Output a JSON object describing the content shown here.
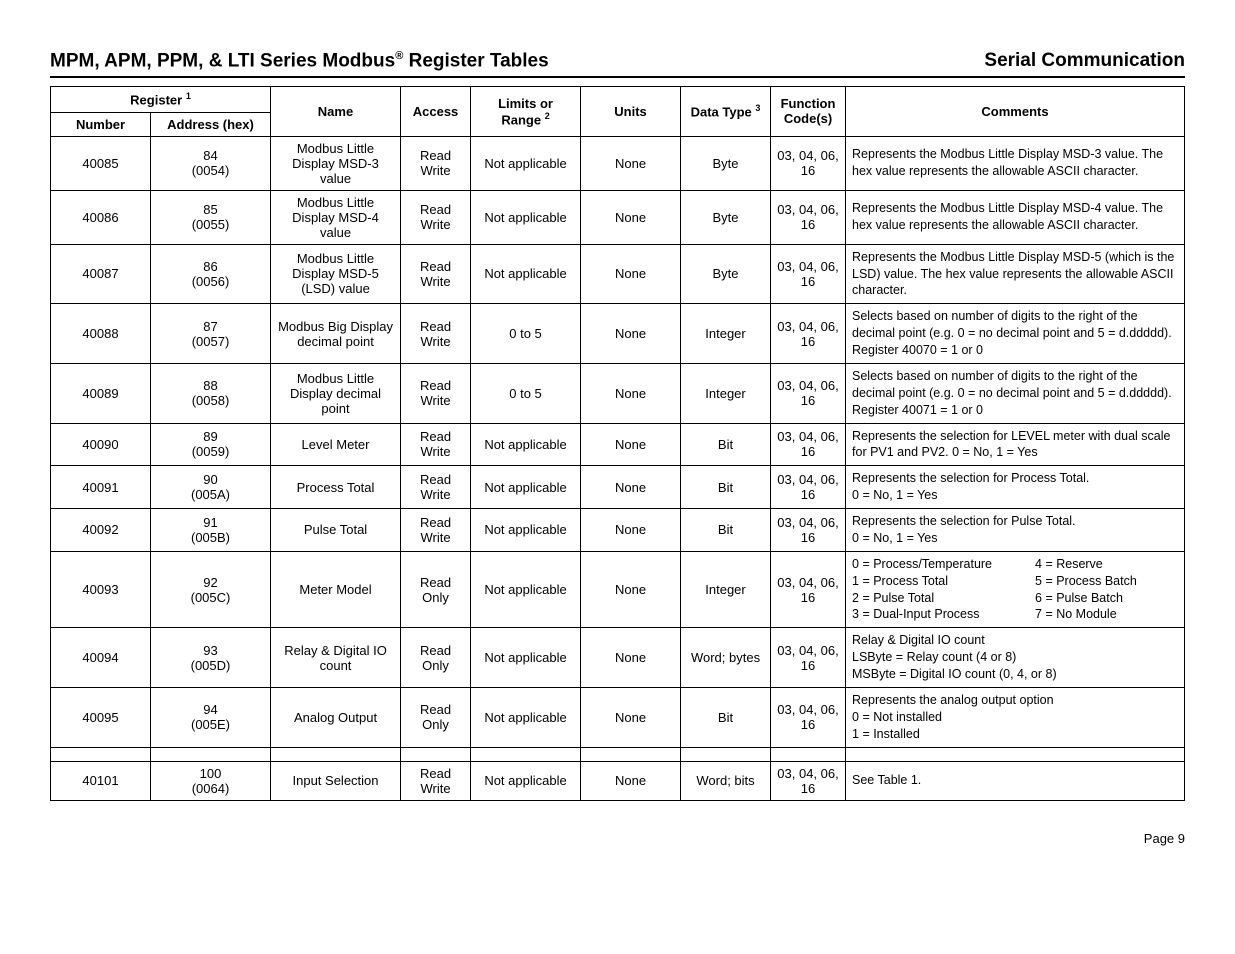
{
  "header": {
    "title_left": "MPM, APM, PPM, & LTI Series Modbus",
    "title_left_sup": "®",
    "title_left_cont": " Register Tables",
    "title_right": "Serial Communication"
  },
  "columns": {
    "register_group": "Register",
    "register_sup": "1",
    "number": "Number",
    "address": "Address (hex)",
    "name": "Name",
    "access": "Access",
    "limits": "Limits or Range",
    "limits_sup": "2",
    "units": "Units",
    "datatype": "Data Type",
    "datatype_sup": "3",
    "func": "Function Code(s)",
    "comments": "Comments"
  },
  "rows": [
    {
      "number": "40085",
      "addr": "84",
      "hex": "(0054)",
      "name": "Modbus Little Display MSD-3 value",
      "access": "Read Write",
      "limits": "Not applicable",
      "units": "None",
      "datatype": "Byte",
      "func": "03, 04, 06, 16",
      "comments": "Represents the Modbus Little Display MSD-3 value. The hex value represents the allowable ASCII character."
    },
    {
      "number": "40086",
      "addr": "85",
      "hex": "(0055)",
      "name": "Modbus Little Display MSD-4 value",
      "access": "Read Write",
      "limits": "Not applicable",
      "units": "None",
      "datatype": "Byte",
      "func": "03, 04, 06, 16",
      "comments": "Represents the Modbus Little Display MSD-4 value. The hex value represents the allowable ASCII character."
    },
    {
      "number": "40087",
      "addr": "86",
      "hex": "(0056)",
      "name": "Modbus Little Display MSD-5 (LSD) value",
      "access": "Read Write",
      "limits": "Not applicable",
      "units": "None",
      "datatype": "Byte",
      "func": "03, 04, 06, 16",
      "comments": "Represents the Modbus Little Display MSD-5 (which is the LSD) value. The hex value represents the allowable ASCII character."
    },
    {
      "number": "40088",
      "addr": "87",
      "hex": "(0057)",
      "name": "Modbus Big Display decimal point",
      "access": "Read Write",
      "limits": "0 to 5",
      "units": "None",
      "datatype": "Integer",
      "func": "03, 04, 06, 16",
      "comments": "Selects based on number of digits to the right of the decimal point (e.g. 0 = no decimal point and 5 = d.ddddd).\nRegister 40070 = 1 or 0"
    },
    {
      "number": "40089",
      "addr": "88",
      "hex": "(0058)",
      "name": "Modbus Little Display decimal point",
      "access": "Read Write",
      "limits": "0 to 5",
      "units": "None",
      "datatype": "Integer",
      "func": "03, 04, 06, 16",
      "comments": "Selects based on number of digits to the right of the decimal point (e.g. 0 = no decimal point and 5 = d.ddddd).\nRegister 40071 = 1 or 0"
    },
    {
      "number": "40090",
      "addr": "89",
      "hex": "(0059)",
      "name": "Level Meter",
      "access": "Read Write",
      "limits": "Not applicable",
      "units": "None",
      "datatype": "Bit",
      "func": "03, 04, 06, 16",
      "comments": "Represents the selection for LEVEL meter with dual scale for PV1 and PV2. 0 = No, 1 = Yes"
    },
    {
      "number": "40091",
      "addr": "90",
      "hex": "(005A)",
      "name": "Process Total",
      "access": "Read Write",
      "limits": "Not applicable",
      "units": "None",
      "datatype": "Bit",
      "func": "03, 04, 06, 16",
      "comments": "Represents the selection for Process Total.\n0 = No, 1 = Yes"
    },
    {
      "number": "40092",
      "addr": "91",
      "hex": "(005B)",
      "name": "Pulse Total",
      "access": "Read Write",
      "limits": "Not applicable",
      "units": "None",
      "datatype": "Bit",
      "func": "03, 04, 06, 16",
      "comments": "Represents the selection for Pulse Total.\n0 = No, 1 = Yes"
    },
    {
      "number": "40093",
      "addr": "92",
      "hex": "(005C)",
      "name": "Meter Model",
      "access": "Read Only",
      "limits": "Not applicable",
      "units": "None",
      "datatype": "Integer",
      "func": "03, 04, 06, 16",
      "comments_2col": {
        "left": [
          "0 = Process/Temperature",
          "1 = Process Total",
          "2 = Pulse Total",
          "3 = Dual-Input Process"
        ],
        "right": [
          "4 = Reserve",
          "5 = Process Batch",
          "6 = Pulse Batch",
          "7 = No Module"
        ]
      }
    },
    {
      "number": "40094",
      "addr": "93",
      "hex": "(005D)",
      "name": "Relay & Digital IO count",
      "access": "Read Only",
      "limits": "Not applicable",
      "units": "None",
      "datatype": "Word; bytes",
      "func": "03, 04, 06, 16",
      "comments": "Relay & Digital IO count\nLSByte = Relay count (4 or 8)\nMSByte = Digital IO count (0, 4, or 8)"
    },
    {
      "number": "40095",
      "addr": "94",
      "hex": "(005E)",
      "name": "Analog Output",
      "access": "Read Only",
      "limits": "Not applicable",
      "units": "None",
      "datatype": "Bit",
      "func": "03, 04, 06, 16",
      "comments": "Represents the analog output option\n0 = Not installed\n1 = Installed"
    },
    {
      "spacer": true
    },
    {
      "number": "40101",
      "addr": "100",
      "hex": "(0064)",
      "name": "Input Selection",
      "access": "Read Write",
      "limits": "Not applicable",
      "units": "None",
      "datatype": "Word; bits",
      "func": "03, 04, 06, 16",
      "comments": "See Table 1."
    }
  ],
  "footer": {
    "page": "Page 9"
  }
}
